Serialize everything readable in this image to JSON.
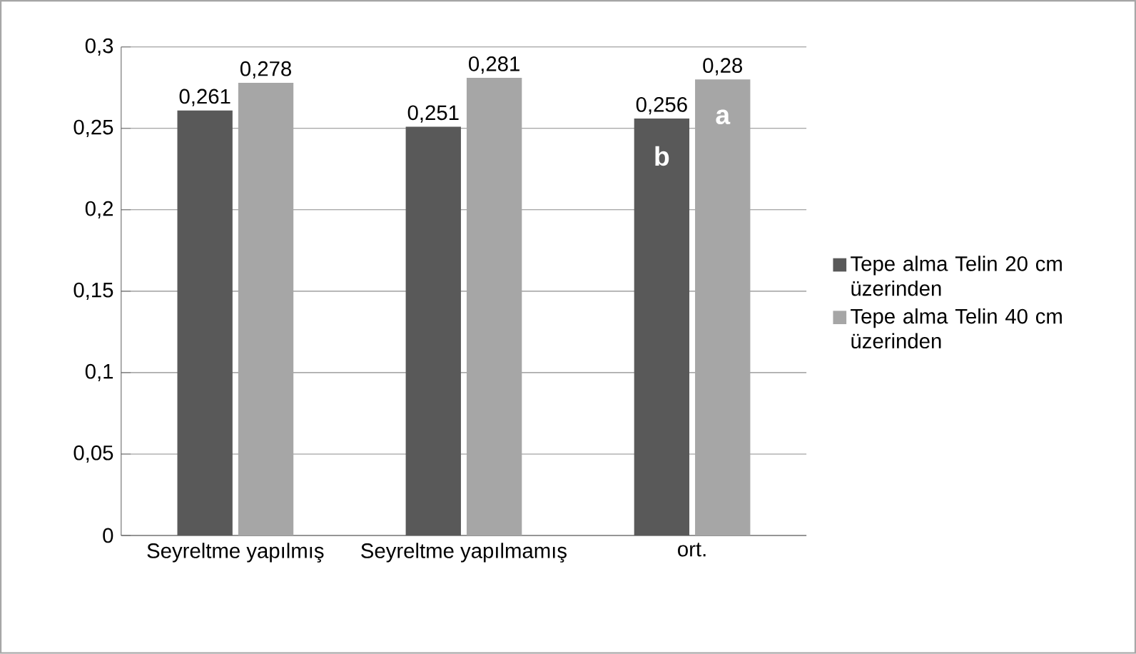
{
  "chart_data": {
    "type": "bar",
    "categories": [
      "Seyreltme yapılmış",
      "Seyreltme yapılmamış",
      "ort."
    ],
    "series": [
      {
        "name": "Tepe alma Telin 20 cm üzerinden",
        "color": "#595959",
        "values": [
          0.261,
          0.251,
          0.256
        ],
        "value_labels": [
          "0,261",
          "0,251",
          "0,256"
        ]
      },
      {
        "name": "Tepe alma Telin 40 cm üzerinden",
        "color": "#a6a6a6",
        "values": [
          0.278,
          0.281,
          0.28
        ],
        "value_labels": [
          "0,278",
          "0,281",
          "0,28"
        ]
      }
    ],
    "ylim": [
      0,
      0.3
    ],
    "yticks": [
      0,
      {
        "value": 0.05,
        "label": "0,05"
      },
      {
        "value": 0.1,
        "label": "0,1"
      },
      {
        "value": 0.15,
        "label": "0,15"
      },
      {
        "value": 0.2,
        "label": "0,2"
      },
      {
        "value": 0.25,
        "label": "0,25"
      },
      {
        "value": 0.3,
        "label": "0,3"
      }
    ],
    "annotations": [
      {
        "text": "b",
        "x": "ort.",
        "y": 0.233
      },
      {
        "text": "a",
        "x": "ort.",
        "y": 0.257
      }
    ],
    "grid": "y",
    "legend": "right"
  }
}
